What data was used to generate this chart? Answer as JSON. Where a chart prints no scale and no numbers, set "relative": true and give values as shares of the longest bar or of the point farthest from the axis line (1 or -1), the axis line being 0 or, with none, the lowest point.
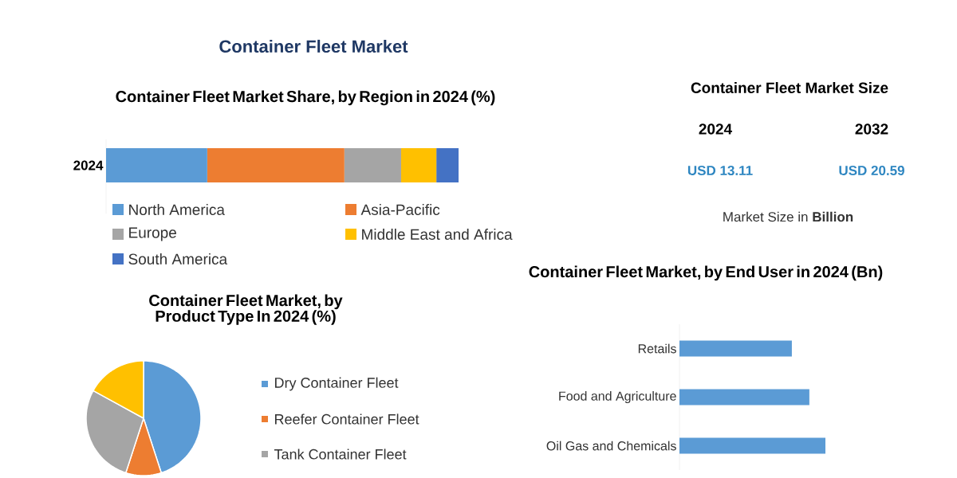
{
  "chart_data": [
    {
      "type": "other",
      "title": "Container Fleet Market"
    },
    {
      "type": "bar",
      "title": "Container Fleet Market Share, by Region in 2024 (%)",
      "categories": [
        "2024"
      ],
      "stacked": true,
      "orientation": "horizontal",
      "relative": true,
      "legend": "bottom",
      "series": [
        {
          "name": "North America",
          "color": "#5b9bd5",
          "values": [
            0.287
          ]
        },
        {
          "name": "Asia-Pacific",
          "color": "#ed7d31",
          "values": [
            0.389
          ]
        },
        {
          "name": "Europe",
          "color": "#a5a5a5",
          "values": [
            0.161
          ]
        },
        {
          "name": "Middle East and Africa",
          "color": "#ffc000",
          "values": [
            0.1
          ]
        },
        {
          "name": "South America",
          "color": "#4472c4",
          "values": [
            0.063
          ]
        }
      ]
    },
    {
      "type": "other",
      "title": "Container Fleet Market Size",
      "annotations": [
        "2024",
        "2032",
        "USD 13.11",
        "USD 20.59",
        "Market Size in **Billion**"
      ]
    },
    {
      "type": "pie",
      "title": "Container Fleet Market, by Product Type In 2024 (%)",
      "legend": "right",
      "categories": [
        "Dry Container Fleet",
        "Reefer Container Fleet",
        "Tank Container Fleet",
        null
      ],
      "values": [
        45,
        10,
        28,
        17
      ],
      "colors": [
        "#5b9bd5",
        "#ed7d31",
        "#a5a5a5",
        "#ffc000"
      ]
    },
    {
      "type": "bar",
      "title": "Container Fleet Market, by End User in 2024 (Bn)",
      "orientation": "horizontal",
      "relative": true,
      "categories": [
        "Retails",
        "Food and Agriculture",
        "Oil Gas and Chemicals"
      ],
      "values": [
        0.77,
        0.89,
        1.0
      ],
      "color": "#5b9bd5"
    }
  ]
}
